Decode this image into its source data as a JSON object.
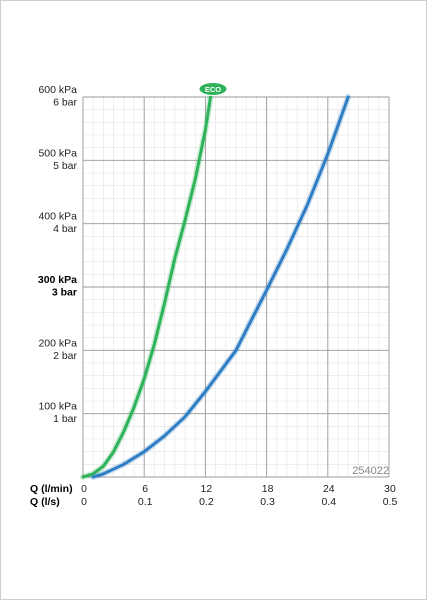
{
  "chart_data": {
    "type": "line",
    "title": "",
    "x_primary": {
      "label": "Q (l/min)",
      "ticks": [
        "0",
        "6",
        "12",
        "18",
        "24",
        "30"
      ],
      "range": [
        0,
        30
      ]
    },
    "x_secondary": {
      "label": "Q (l/s)",
      "ticks": [
        "0",
        "0.1",
        "0.2",
        "0.3",
        "0.4",
        "0.5"
      ],
      "range": [
        0,
        0.5
      ]
    },
    "y_axis": {
      "range": [
        0,
        600
      ],
      "unit": "kPa",
      "ticks": [
        {
          "value": 600,
          "kpa": "600 kPa",
          "bar": "6 bar",
          "bold": false
        },
        {
          "value": 500,
          "kpa": "500 kPa",
          "bar": "5 bar",
          "bold": false
        },
        {
          "value": 400,
          "kpa": "400 kPa",
          "bar": "4 bar",
          "bold": false
        },
        {
          "value": 300,
          "kpa": "300 kPa",
          "bar": "3 bar",
          "bold": true
        },
        {
          "value": 200,
          "kpa": "200 kPa",
          "bar": "2 bar",
          "bold": false
        },
        {
          "value": 100,
          "kpa": "100 kPa",
          "bar": "1 bar",
          "bold": false
        }
      ]
    },
    "grid": true,
    "series": [
      {
        "label": "ECO",
        "color": "#2fb35a",
        "points": [
          [
            0,
            0
          ],
          [
            1,
            5
          ],
          [
            2,
            17
          ],
          [
            3,
            40
          ],
          [
            4,
            72
          ],
          [
            5,
            110
          ],
          [
            6,
            155
          ],
          [
            7,
            210
          ],
          [
            8,
            275
          ],
          [
            9,
            345
          ],
          [
            10,
            405
          ],
          [
            11,
            470
          ],
          [
            12,
            548
          ],
          [
            12.5,
            600
          ]
        ]
      },
      {
        "color": "#2f7ec4",
        "points": [
          [
            1,
            0
          ],
          [
            2,
            5
          ],
          [
            4,
            20
          ],
          [
            6,
            40
          ],
          [
            8,
            65
          ],
          [
            10,
            95
          ],
          [
            12,
            135
          ],
          [
            15,
            200
          ],
          [
            18,
            295
          ],
          [
            20,
            360
          ],
          [
            22,
            430
          ],
          [
            24,
            510
          ],
          [
            26,
            600
          ]
        ]
      }
    ],
    "code": "254022"
  }
}
